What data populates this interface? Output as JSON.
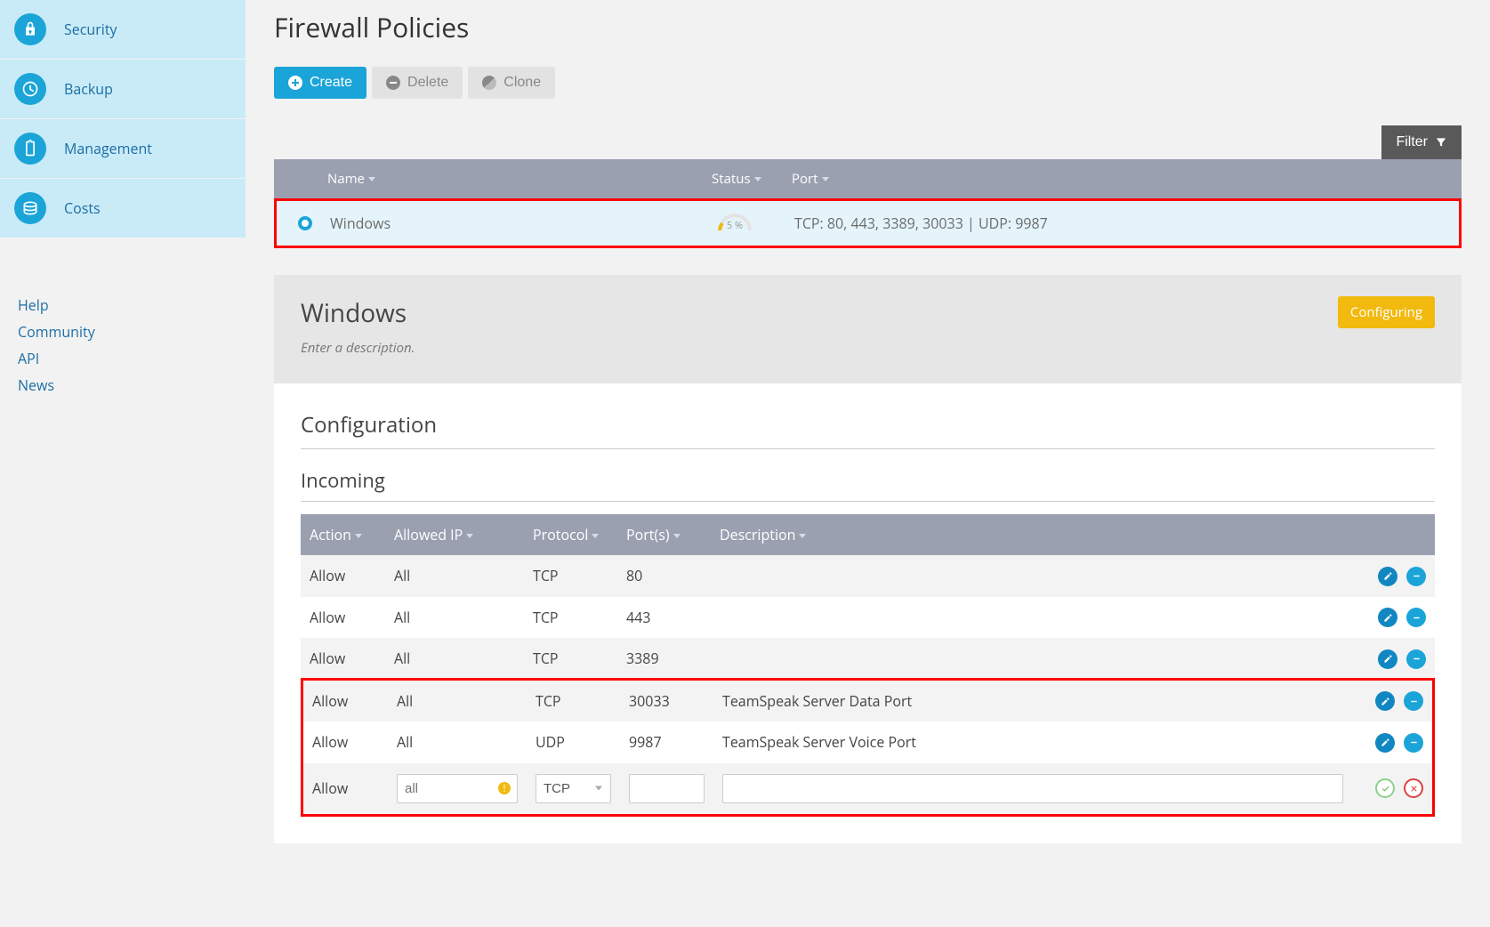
{
  "sidebar": {
    "items": [
      {
        "label": "Security",
        "icon": "lock"
      },
      {
        "label": "Backup",
        "icon": "clock"
      },
      {
        "label": "Management",
        "icon": "clipboard"
      },
      {
        "label": "Costs",
        "icon": "coins"
      }
    ],
    "footer": [
      "Help",
      "Community",
      "API",
      "News"
    ]
  },
  "page": {
    "title": "Firewall Policies",
    "buttons": {
      "create": "Create",
      "delete": "Delete",
      "clone": "Clone"
    },
    "filter_label": "Filter"
  },
  "policies_table": {
    "columns": {
      "name": "Name",
      "status": "Status",
      "port": "Port"
    },
    "rows": [
      {
        "selected": true,
        "name": "Windows",
        "status_pct": "5 %",
        "port": "TCP: 80, 443, 3389, 30033 | UDP: 9987"
      }
    ]
  },
  "detail": {
    "title": "Windows",
    "description_placeholder": "Enter a description.",
    "status_badge": "Configuring"
  },
  "config": {
    "heading": "Configuration",
    "incoming_heading": "Incoming",
    "columns": {
      "action": "Action",
      "allowed_ip": "Allowed IP",
      "protocol": "Protocol",
      "ports": "Port(s)",
      "description": "Description"
    },
    "rows": [
      {
        "action": "Allow",
        "ip": "All",
        "proto": "TCP",
        "ports": "80",
        "desc": ""
      },
      {
        "action": "Allow",
        "ip": "All",
        "proto": "TCP",
        "ports": "443",
        "desc": ""
      },
      {
        "action": "Allow",
        "ip": "All",
        "proto": "TCP",
        "ports": "3389",
        "desc": ""
      },
      {
        "action": "Allow",
        "ip": "All",
        "proto": "TCP",
        "ports": "30033",
        "desc": "TeamSpeak Server Data Port"
      },
      {
        "action": "Allow",
        "ip": "All",
        "proto": "UDP",
        "ports": "9987",
        "desc": "TeamSpeak Server Voice Port"
      }
    ],
    "new_row": {
      "action": "Allow",
      "ip_placeholder": "all",
      "proto": "TCP",
      "ports": "",
      "desc": ""
    }
  },
  "colors": {
    "accent": "#1ba4d8",
    "sidebar_item_bg": "#c9ebf7",
    "table_header_bg": "#9aa0b0",
    "highlight_border": "#ff0000",
    "badge_bg": "#f2b90f"
  }
}
